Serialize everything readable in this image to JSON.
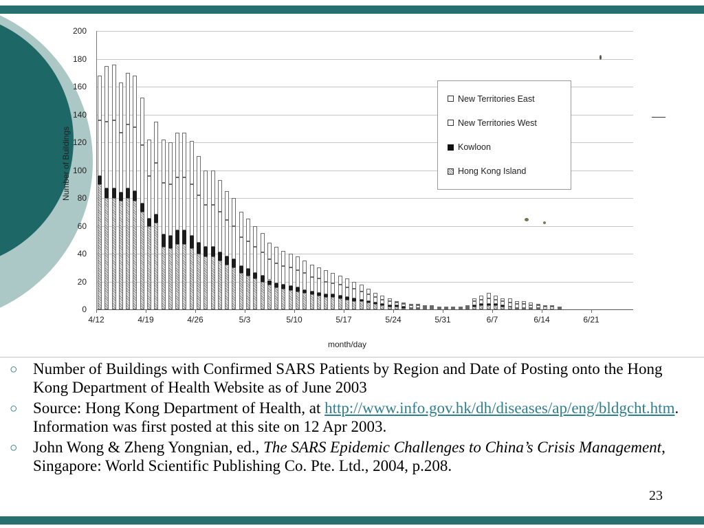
{
  "slide": {
    "page_number": "23",
    "artifact_dash": "—",
    "bullet_marker": "○",
    "theme": {
      "teal_dark": "#1d6766",
      "teal_light": "#abc8c6",
      "link_color": "#2f7e8e"
    }
  },
  "bullets": {
    "b1": {
      "text": "Number of Buildings with Confirmed SARS Patients by Region and Date of Posting onto the Hong Kong Department of Health Website as of June 2003"
    },
    "b2": {
      "pre": "Source: Hong Kong Department of Health, at ",
      "link": "http://www.info.gov.hk/dh/diseases/ap/eng/bldgcht.htm",
      "post": ". Information was first posted at this site on 12 Apr 2003."
    },
    "b3": {
      "pre": "John Wong & Zheng Yongnian, ed., ",
      "italic": "The SARS Epidemic Challenges to China’s Crisis Management",
      "post": ", Singapore: World Scientific Publishing Co. Pte. Ltd., 2004, p.208."
    }
  },
  "chart_data": {
    "type": "bar",
    "stacked": true,
    "title": "",
    "xlabel": "month/day",
    "ylabel": "Number of Buildings",
    "ylim": [
      0,
      200
    ],
    "yticks": [
      0,
      20,
      40,
      60,
      80,
      100,
      120,
      140,
      160,
      180,
      200
    ],
    "xtick_labels": [
      "4/12",
      "4/19",
      "4/26",
      "5/3",
      "5/10",
      "5/17",
      "5/24",
      "5/31",
      "6/7",
      "6/14",
      "6/21"
    ],
    "legend": [
      "New Territories East",
      "New Territories West",
      "Kowloon",
      "Hong Kong Island"
    ],
    "legend_position": "upper right",
    "grid": true,
    "dates": [
      "4/12",
      "4/13",
      "4/14",
      "4/15",
      "4/16",
      "4/17",
      "4/18",
      "4/19",
      "4/20",
      "4/21",
      "4/22",
      "4/23",
      "4/24",
      "4/25",
      "4/26",
      "4/27",
      "4/28",
      "4/29",
      "4/30",
      "5/1",
      "5/2",
      "5/3",
      "5/4",
      "5/5",
      "5/6",
      "5/7",
      "5/8",
      "5/9",
      "5/10",
      "5/11",
      "5/12",
      "5/13",
      "5/14",
      "5/15",
      "5/16",
      "5/17",
      "5/18",
      "5/19",
      "5/20",
      "5/21",
      "5/22",
      "5/23",
      "5/24",
      "5/25",
      "5/26",
      "5/27",
      "5/28",
      "5/29",
      "5/30",
      "5/31",
      "6/1",
      "6/2",
      "6/3",
      "6/4",
      "6/5",
      "6/6",
      "6/7",
      "6/8",
      "6/9",
      "6/10",
      "6/11",
      "6/12",
      "6/13",
      "6/14",
      "6/15",
      "6/16"
    ],
    "series": [
      {
        "name": "Hong Kong Island",
        "style": "hatch",
        "values": [
          90,
          80,
          80,
          78,
          80,
          78,
          70,
          60,
          62,
          45,
          44,
          47,
          47,
          44,
          40,
          38,
          38,
          35,
          32,
          30,
          26,
          24,
          22,
          20,
          18,
          16,
          15,
          14,
          13,
          12,
          11,
          10,
          9,
          9,
          8,
          7,
          6,
          6,
          5,
          4,
          3,
          2,
          2,
          1,
          1,
          1,
          1,
          1,
          0,
          0,
          0,
          0,
          1,
          2,
          3,
          3,
          3,
          2,
          2,
          1,
          1,
          1,
          1,
          0,
          0,
          0
        ]
      },
      {
        "name": "Kowloon",
        "style": "filled",
        "values": [
          6,
          7,
          7,
          6,
          7,
          7,
          6,
          5,
          6,
          9,
          9,
          10,
          10,
          9,
          8,
          7,
          7,
          6,
          6,
          6,
          5,
          5,
          4,
          4,
          3,
          3,
          3,
          3,
          3,
          2,
          2,
          2,
          2,
          2,
          2,
          2,
          2,
          1,
          1,
          1,
          1,
          1,
          1,
          1,
          0,
          0,
          0,
          0,
          0,
          0,
          0,
          0,
          0,
          1,
          1,
          1,
          1,
          1,
          0,
          0,
          0,
          0,
          0,
          0,
          0,
          0
        ]
      },
      {
        "name": "New Territories West",
        "style": "open",
        "values": [
          40,
          48,
          49,
          43,
          46,
          46,
          42,
          31,
          37,
          37,
          37,
          38,
          38,
          37,
          34,
          30,
          30,
          29,
          26,
          24,
          21,
          20,
          19,
          17,
          15,
          14,
          13,
          13,
          12,
          12,
          10,
          10,
          9,
          8,
          8,
          7,
          7,
          6,
          5,
          4,
          3,
          3,
          2,
          2,
          2,
          2,
          1,
          1,
          1,
          1,
          1,
          1,
          1,
          3,
          3,
          4,
          3,
          3,
          3,
          3,
          3,
          2,
          2,
          2,
          2,
          1
        ]
      },
      {
        "name": "New Territories East",
        "style": "open",
        "values": [
          32,
          40,
          40,
          36,
          37,
          37,
          34,
          26,
          30,
          31,
          30,
          32,
          32,
          31,
          28,
          25,
          25,
          23,
          21,
          20,
          18,
          16,
          15,
          14,
          12,
          12,
          11,
          10,
          10,
          9,
          9,
          8,
          8,
          7,
          6,
          6,
          5,
          5,
          4,
          3,
          3,
          2,
          1,
          1,
          1,
          1,
          1,
          1,
          1,
          1,
          1,
          1,
          1,
          2,
          3,
          4,
          3,
          2,
          3,
          2,
          2,
          2,
          1,
          1,
          1,
          1
        ]
      }
    ]
  }
}
